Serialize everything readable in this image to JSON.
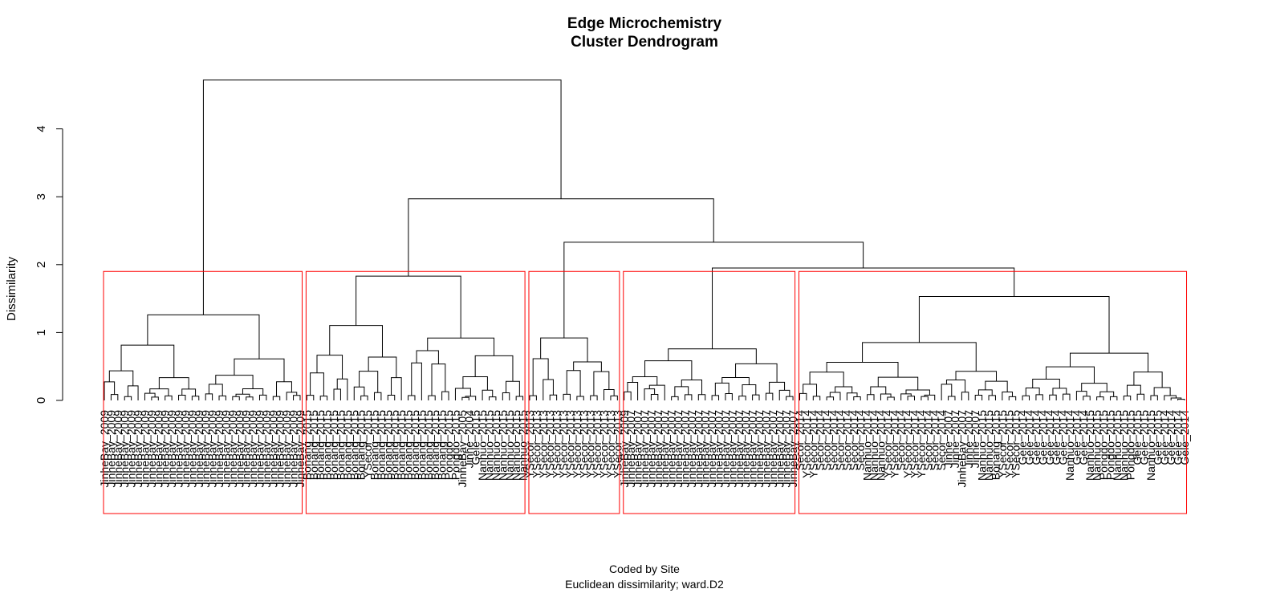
{
  "chart_data": {
    "type": "dendrogram",
    "title": "Edge Microchemistry",
    "subtitle": "Cluster Dendrogram",
    "xlabel": "Coded by Site",
    "sub_caption": "Euclidean dissimilarity; ward.D2",
    "ylabel": "Dissimilarity",
    "ylim": [
      0,
      4.8
    ],
    "y_ticks": [
      0,
      1,
      2,
      3,
      4
    ],
    "cut_height": 1.9,
    "clusters": [
      {
        "merge_height": 1.26,
        "leaves": [
          "JinheBay_2009",
          "JinheBay_2009",
          "JinheBay_2009",
          "JinheBay_2009",
          "JinheBay_2009",
          "JinheBay_2009",
          "JinheBay_2009",
          "JinheBay_2009",
          "JinheBay_2009",
          "JinheBay_2009",
          "JinheBay_2009",
          "JinheBay_2009",
          "JinheBay_2009",
          "JinheBay_2009",
          "JinheBay_2009",
          "JinheBay_2009",
          "JinheBay_2009",
          "JinheBay_2009",
          "JinheBay_2009",
          "JinheBay_2009",
          "JinheBay_2009",
          "JinheBay_2009",
          "JinheBay_2009",
          "JinheBay_2009",
          "JinheBay_2009",
          "JinheBay_2009",
          "JinheBay_2009",
          "JinheBay_2009",
          "JinheBay_2009",
          "JinheBay_2009"
        ]
      },
      {
        "merge_height": 1.83,
        "leaves": [
          "Bonang_2015",
          "Bonang_2015",
          "Bonang_2015",
          "Bonang_2015",
          "Bonang_2015",
          "Bonang_2015",
          "Bonang_2015",
          "Bonang_2015",
          "Bonang_2015",
          "YSecor_2015",
          "Bonang_2015",
          "Bonang_2015",
          "Bonang_2015",
          "Bonang_2015",
          "Bonang_2015",
          "Bonang_2015",
          "Bonang_2015",
          "Bonang_2015",
          "Bonang_2015",
          "Bonang_2015",
          "Bonang_2015",
          "Pongdo_2015",
          "Pongdo_2015",
          "JinheBay_2005",
          "Jinhe_2004",
          "Gele_2015",
          "Nanhuo_2015",
          "Nanhuo_2015",
          "Nanhuo_2015",
          "Nanhuo_2015",
          "Nanhuo_2015",
          "Nanhuo_2015",
          "Nanhuo_2015"
        ]
      },
      {
        "merge_height": 0.92,
        "leaves": [
          "YSecor_2013",
          "YSecor_2013",
          "YSecor_2013",
          "YSecor_2013",
          "YSecor_2013",
          "YSecor_2013",
          "YSecor_2013",
          "YSecor_2013",
          "YSecor_2013",
          "YSecor_2013",
          "YSecor_2013",
          "YSecor_2013",
          "YSecor_2013",
          "YSecor_2013"
        ]
      },
      {
        "merge_height": 0.76,
        "leaves": [
          "JinheBay_2009",
          "JinheBay_2007",
          "JinheBay_2007",
          "JinheBay_2007",
          "JinheBay_2007",
          "JinheBay_2007",
          "JinheBay_2007",
          "JinheBay_2007",
          "JinheBay_2007",
          "JinheBay_2007",
          "JinheBay_2007",
          "JinheBay_2007",
          "JinheBay_2007",
          "JinheBay_2007",
          "JinheBay_2007",
          "JinheBay_2007",
          "JinheBay_2007",
          "JinheBay_2007",
          "JinheBay_2007",
          "JinheBay_2007",
          "JinheBay_2007",
          "JinheBay_2007",
          "JinheBay_2007",
          "JinheBay_2007",
          "JinheBay_2007",
          "JinheBay_2007"
        ]
      },
      {
        "merge_height": 1.53,
        "leaves": [
          "Secor_2014",
          "YSecor_2014",
          "YSecor_2014",
          "Secor_2014",
          "Secor_2014",
          "Secor_2014",
          "Secor_2014",
          "Secor_2014",
          "Secor_2014",
          "Secor_2014",
          "Nanhuo_2014",
          "Nanhuo_2014",
          "Nanhuo_2014",
          "YSecor_2014",
          "YSecor_2014",
          "Secor_2014",
          "YSecor_2014",
          "YSecor_2014",
          "YSecor_2014",
          "Secor_2014",
          "Secor_2014",
          "Secor_2014",
          "Jinhe_2007",
          "Jinhe_2007",
          "JinheBay_2007",
          "Jinhe_2007",
          "Jinhe_2007",
          "Nanhuo_2015",
          "Nanhuo_2015",
          "Bonang_2015",
          "YSecor_2015",
          "YSecor_2015",
          "YSecor_2015",
          "Gele_2014",
          "Gele_2014",
          "Gele_2014",
          "Gele_2014",
          "Gele_2014",
          "Gele_2014",
          "Gele_2014",
          "Nanhuo_2014",
          "Gele_2014",
          "Gele_2014",
          "Nanhuo_2015",
          "Nanhuo_2015",
          "Pongdo_2015",
          "Pongdo_2015",
          "Nanhuo_2015",
          "Nanhuo_2015",
          "Pongdo_2015",
          "Gele_2015",
          "Gele_2015",
          "Nanhuo_2015",
          "Gele_2015",
          "Gele_2014",
          "Gele_2014",
          "Gele_2014",
          "Gele_2014"
        ]
      }
    ],
    "top_merges": [
      {
        "left": [
          4
        ],
        "right": [
          3
        ],
        "height": 1.95
      },
      {
        "left": [
          2
        ],
        "right": [
          3,
          4
        ],
        "height": 2.33
      },
      {
        "left": [
          1
        ],
        "right": [
          2,
          3,
          4
        ],
        "height": 2.97
      },
      {
        "left": [
          0
        ],
        "right": [
          1,
          2,
          3,
          4
        ],
        "height": 4.72
      }
    ]
  },
  "colors": {
    "tree": "#000000",
    "cluster_box": "#ff0000",
    "background": "#ffffff"
  }
}
